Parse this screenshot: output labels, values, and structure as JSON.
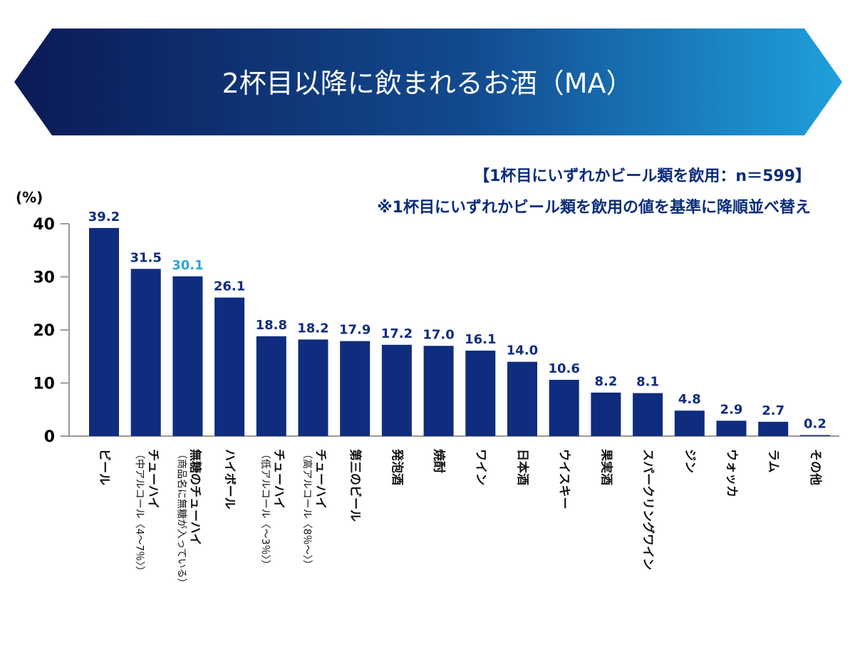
{
  "header": {
    "title": "2杯目以降に飲まれるお酒（MA）"
  },
  "notes": {
    "base": "【1杯目にいずれかビール類を飲用：n＝599】",
    "sort": "※1杯目にいずれかビール類を飲用の値を基準に降順並べ替え"
  },
  "colors": {
    "bar": "#0f2c7e",
    "value_label": "#0f2c7e",
    "highlight_value_label": "#2aa6e0",
    "banner_left": "#0b1a56",
    "banner_right": "#1fa0dc"
  },
  "chart_data": {
    "type": "bar",
    "title": "2杯目以降に飲まれるお酒（MA）",
    "ylabel": "(%)",
    "xlabel": "",
    "ylim": [
      0,
      40
    ],
    "yticks": [
      0,
      10,
      20,
      30,
      40
    ],
    "grid": false,
    "categories": [
      {
        "name": "ビール",
        "sub": ""
      },
      {
        "name": "チューハイ",
        "sub": "（中アルコール〈4～7％〉）"
      },
      {
        "name": "無糖のチューハイ",
        "sub": "（商品名に無糖が入っている）"
      },
      {
        "name": "ハイボール",
        "sub": ""
      },
      {
        "name": "チューハイ",
        "sub": "（低アルコール〈～3％〉）"
      },
      {
        "name": "チューハイ",
        "sub": "（高アルコール〈8％～〉）"
      },
      {
        "name": "第三のビール",
        "sub": ""
      },
      {
        "name": "発泡酒",
        "sub": ""
      },
      {
        "name": "焼酎",
        "sub": ""
      },
      {
        "name": "ワイン",
        "sub": ""
      },
      {
        "name": "日本酒",
        "sub": ""
      },
      {
        "name": "ウイスキー",
        "sub": ""
      },
      {
        "name": "果実酒",
        "sub": ""
      },
      {
        "name": "スパークリングワイン",
        "sub": ""
      },
      {
        "name": "ジン",
        "sub": ""
      },
      {
        "name": "ウォッカ",
        "sub": ""
      },
      {
        "name": "ラム",
        "sub": ""
      },
      {
        "name": "その他",
        "sub": ""
      }
    ],
    "values": [
      39.2,
      31.5,
      30.1,
      26.1,
      18.8,
      18.2,
      17.9,
      17.2,
      17.0,
      16.1,
      14.0,
      10.6,
      8.2,
      8.1,
      4.8,
      2.9,
      2.7,
      0.2
    ],
    "value_labels": [
      "39.2",
      "31.5",
      "30.1",
      "26.1",
      "18.8",
      "18.2",
      "17.9",
      "17.2",
      "17.0",
      "16.1",
      "14.0",
      "10.6",
      "8.2",
      "8.1",
      "4.8",
      "2.9",
      "2.7",
      "0.2"
    ],
    "highlight_index": 2
  }
}
